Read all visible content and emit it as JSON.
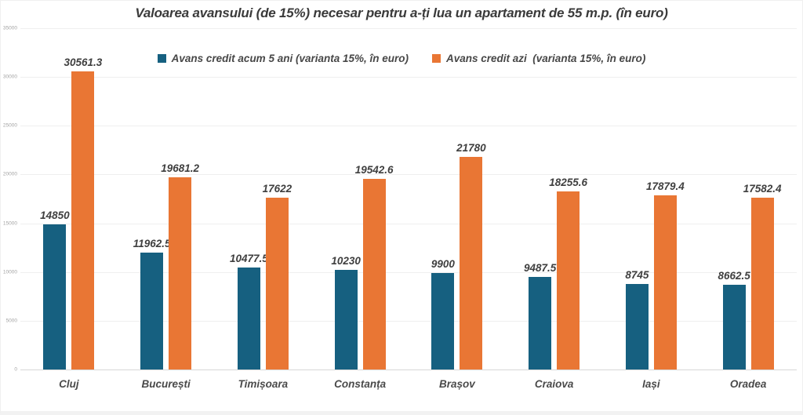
{
  "chart_data": {
    "type": "bar",
    "title": "Valoarea avansului (de 15%) necesar pentru a-ți lua un apartament de 55 m.p. (în euro)",
    "categories": [
      "Cluj",
      "București",
      "Timișoara",
      "Constanța",
      "Brașov",
      "Craiova",
      "Iași",
      "Oradea"
    ],
    "series": [
      {
        "name": "Avans credit acum 5 ani (varianta 15%, în euro)",
        "color": "#166080",
        "values": [
          14850,
          11962.5,
          10477.5,
          10230,
          9900,
          9487.5,
          8745,
          8662.5
        ]
      },
      {
        "name": "Avans credit azi  (varianta 15%, în euro)",
        "color": "#E97634",
        "values": [
          30561.3,
          19681.2,
          17622,
          19542.6,
          21780,
          18255.6,
          17879.4,
          17582.4
        ]
      }
    ],
    "xlabel": "",
    "ylabel": "",
    "ylim": [
      0,
      35000
    ],
    "ytick_step": 5000,
    "ytick_labels": [
      "35000",
      "30000",
      "25000",
      "20000",
      "15000",
      "10000",
      "5000",
      "0"
    ],
    "grid": "horizontal",
    "legend_position": "top-center",
    "colors": {
      "title_text": "#3a3a3a",
      "data_label_text": "#3f3f3f",
      "axis_label_text": "#a3a3a3",
      "gridline": "#efefef",
      "baseline": "#d6d6d6"
    }
  }
}
